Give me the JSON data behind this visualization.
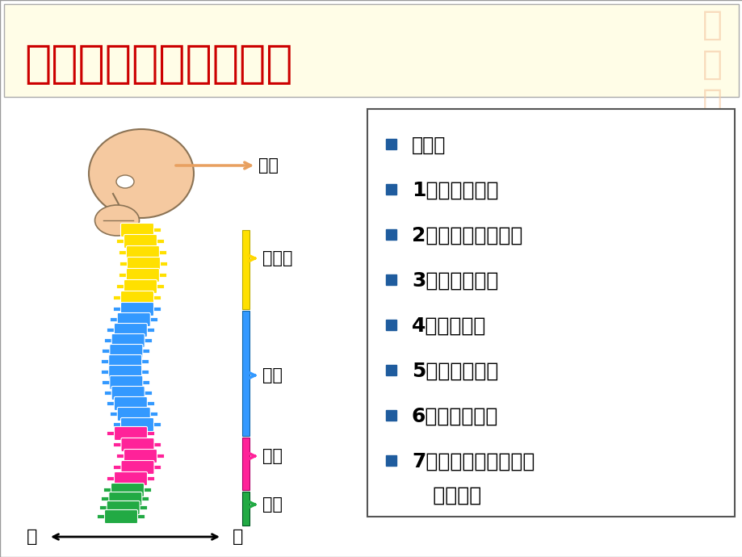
{
  "title": "脊柱的结构－外强内弱",
  "title_color": "#CC0000",
  "title_fontsize": 40,
  "bg_color": "#FFFFFF",
  "grid_color": "#CCCCCC",
  "bullet_color": "#1F5C9E",
  "bullet_items": [
    "原因：",
    "1、进化不完善",
    "2、双足直立不稳定",
    "3、受力不平衡",
    "4、过度劳损",
    "5、静力性损伤",
    "6、过软的床铺",
    "7、维生素和微量元素\n   的缺乏。"
  ],
  "spine_label_color": "black",
  "label_fontsize": 15,
  "skull_color": "#F5C9A0",
  "skull_edge": "#8B7355",
  "cervical_color": "#FFE000",
  "thoracic_color": "#3399FF",
  "lumbar_color": "#FF2299",
  "sacrum_color": "#22AA44",
  "bar_yellow": "#FFE000",
  "bar_blue": "#3399FF",
  "bar_pink": "#FF2299",
  "bar_green": "#22AA44",
  "arrow_skull": "#E8A060",
  "arrow_cervical": "#FFD700",
  "arrow_thoracic": "#3399FF",
  "arrow_lumbar": "#FF2299",
  "arrow_sacrum": "#22AA44",
  "watermark_color": "#F5CBA7",
  "box_border_color": "#555555",
  "title_box_color": "#FFFDE0",
  "title_line_color": "#AAAAAA"
}
